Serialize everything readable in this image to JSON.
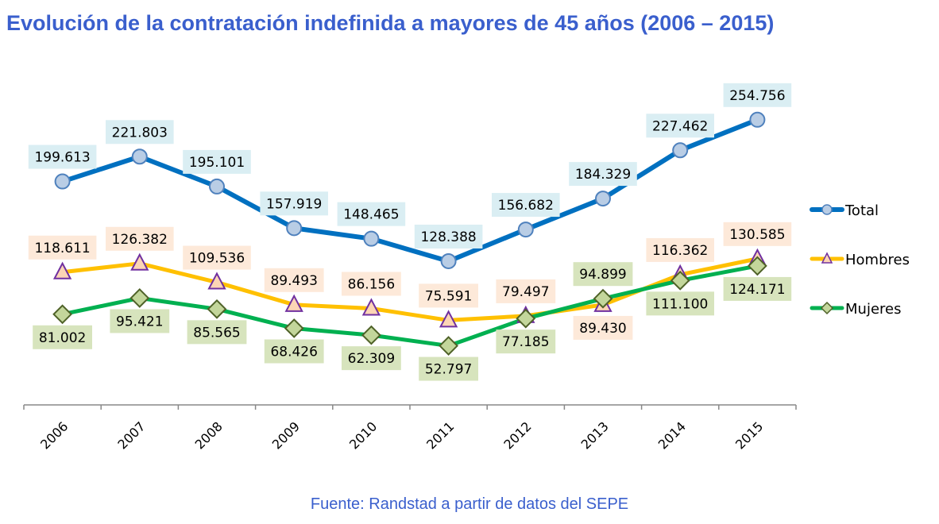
{
  "chart_data": {
    "type": "line",
    "title": "Evolución de la contratación indefinida a mayores de 45 años (2006 – 2015)",
    "source": "Fuente: Randstad a partir de datos del SEPE",
    "categories": [
      "2006",
      "2007",
      "2008",
      "2009",
      "2010",
      "2011",
      "2012",
      "2013",
      "2014",
      "2015"
    ],
    "ylim": [
      0,
      300000
    ],
    "grid": false,
    "legend_position": "right",
    "series": [
      {
        "name": "Total",
        "color": "#0070c0",
        "marker": "circle",
        "marker_fill": "#b9cde5",
        "marker_stroke": "#4f81bd",
        "label_bg": "#daeef3",
        "values": [
          199613,
          221803,
          195101,
          157919,
          148465,
          128388,
          156682,
          184329,
          227462,
          254756
        ],
        "labels": [
          "199.613",
          "221.803",
          "195.101",
          "157.919",
          "148.465",
          "128.388",
          "156.682",
          "184.329",
          "227.462",
          "254.756"
        ]
      },
      {
        "name": "Hombres",
        "color": "#ffc000",
        "marker": "triangle",
        "marker_fill": "#fcd5b5",
        "marker_stroke": "#7030a0",
        "label_bg": "#fde9d9",
        "values": [
          118611,
          126382,
          109536,
          89493,
          86156,
          75591,
          79497,
          89430,
          116362,
          130585
        ],
        "labels": [
          "118.611",
          "126.382",
          "109.536",
          "89.493",
          "86.156",
          "75.591",
          "79.497",
          "89.430",
          "116.362",
          "130.585"
        ]
      },
      {
        "name": "Mujeres",
        "color": "#00b050",
        "marker": "diamond",
        "marker_fill": "#c3d69b",
        "marker_stroke": "#4f6228",
        "label_bg": "#d7e4bd",
        "values": [
          81002,
          95421,
          85565,
          68426,
          62309,
          52797,
          77185,
          94899,
          111100,
          124171
        ],
        "labels": [
          "81.002",
          "95.421",
          "85.565",
          "68.426",
          "62.309",
          "52.797",
          "77.185",
          "94.899",
          "111.100",
          "124.171"
        ]
      }
    ]
  }
}
